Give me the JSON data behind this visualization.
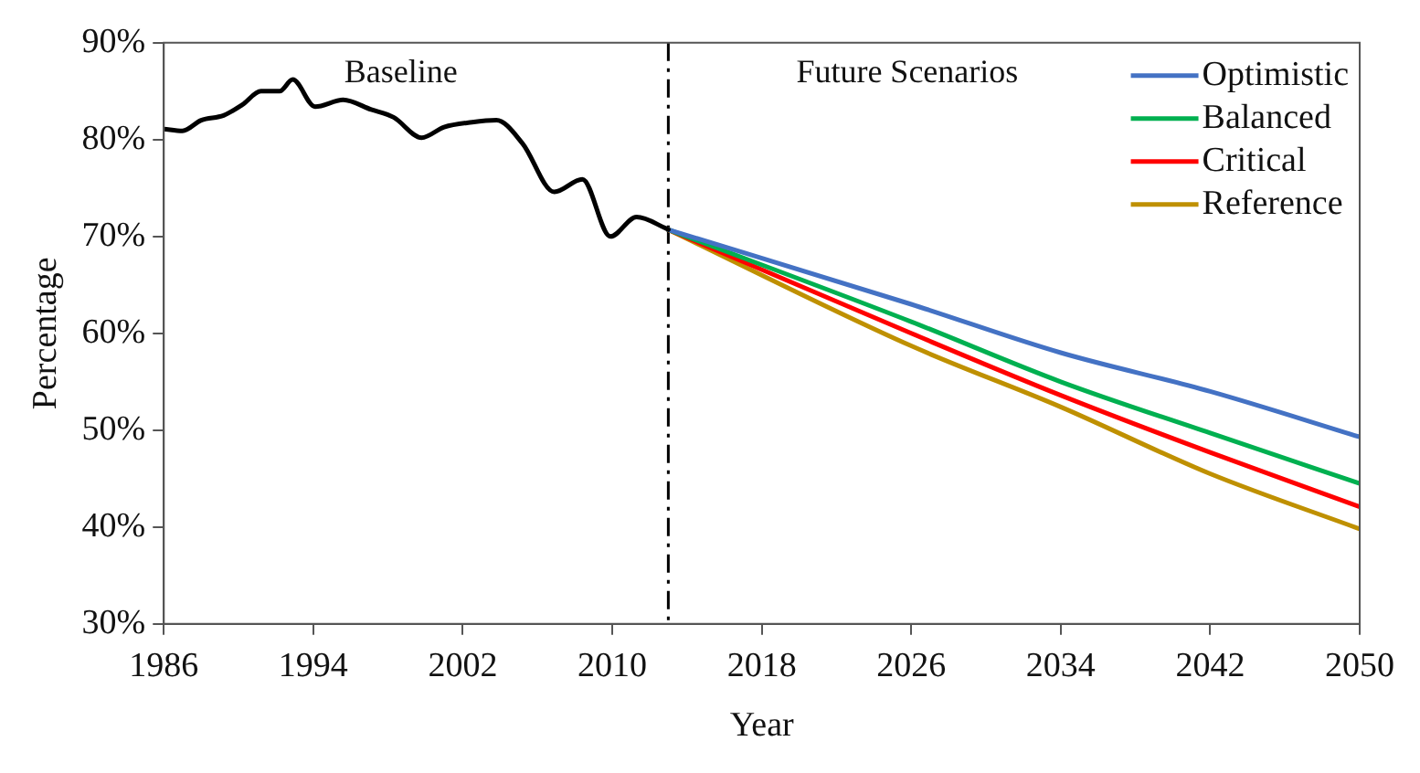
{
  "chart_data": {
    "type": "line",
    "xlabel": "Year",
    "ylabel": "Percentage",
    "xlim": [
      1986,
      2050
    ],
    "xticks": [
      1986,
      1994,
      2002,
      2010,
      2018,
      2026,
      2034,
      2042,
      2050
    ],
    "ylim": [
      30,
      90
    ],
    "yticks": [
      {
        "value": 30,
        "label": "30%"
      },
      {
        "value": 40,
        "label": "40%"
      },
      {
        "value": 50,
        "label": "50%"
      },
      {
        "value": 60,
        "label": "60%"
      },
      {
        "value": 70,
        "label": "70%"
      },
      {
        "value": 80,
        "label": "80%"
      },
      {
        "value": 90,
        "label": "90%"
      }
    ],
    "grid": false,
    "legend": "top right",
    "marker": "none",
    "line_style": "solid",
    "series": [
      {
        "color": "#000000",
        "x": [
          1986,
          1987,
          1988,
          1989.2,
          1990.2,
          1991.2,
          1992.2,
          1992.9,
          1994.1,
          1995.6,
          1997.1,
          1998.3,
          1999.8,
          2001,
          2002.5,
          2003.8,
          2005.2,
          2006.9,
          2008.4,
          2009.9,
          2011.3,
          2012.8,
          2013
        ],
        "values": [
          81.1,
          80.9,
          82.0,
          82.5,
          83.6,
          85.0,
          85.0,
          86.2,
          83.4,
          84.1,
          83.1,
          82.3,
          80.2,
          81.3,
          81.8,
          82.0,
          79.6,
          74.6,
          75.9,
          70.0,
          72.0,
          70.9,
          70.7
        ]
      },
      {
        "name": "Optimistic",
        "color": "#4472c4",
        "x": [
          2013,
          2026,
          2034,
          2042,
          2050
        ],
        "values": [
          70.7,
          63.0,
          58.0,
          54.0,
          49.3
        ]
      },
      {
        "name": "Balanced",
        "color": "#00b050",
        "x": [
          2013,
          2026,
          2034,
          2042,
          2050
        ],
        "values": [
          70.7,
          61.2,
          55.0,
          49.7,
          44.5
        ]
      },
      {
        "name": "Critical",
        "color": "#ff0000",
        "x": [
          2013,
          2026,
          2034,
          2042,
          2050
        ],
        "values": [
          70.7,
          60.0,
          53.6,
          47.7,
          42.1
        ]
      },
      {
        "name": "Reference",
        "color": "#bf9000",
        "x": [
          2013,
          2026,
          2034,
          2042,
          2050
        ],
        "values": [
          70.7,
          58.7,
          52.4,
          45.5,
          39.8
        ]
      }
    ],
    "ref_lines": [
      {
        "axis": "x",
        "value": 2013,
        "color": "#000000",
        "line_style": "dashed"
      }
    ],
    "annotations": [
      "Baseline",
      "Future Scenarios"
    ]
  }
}
